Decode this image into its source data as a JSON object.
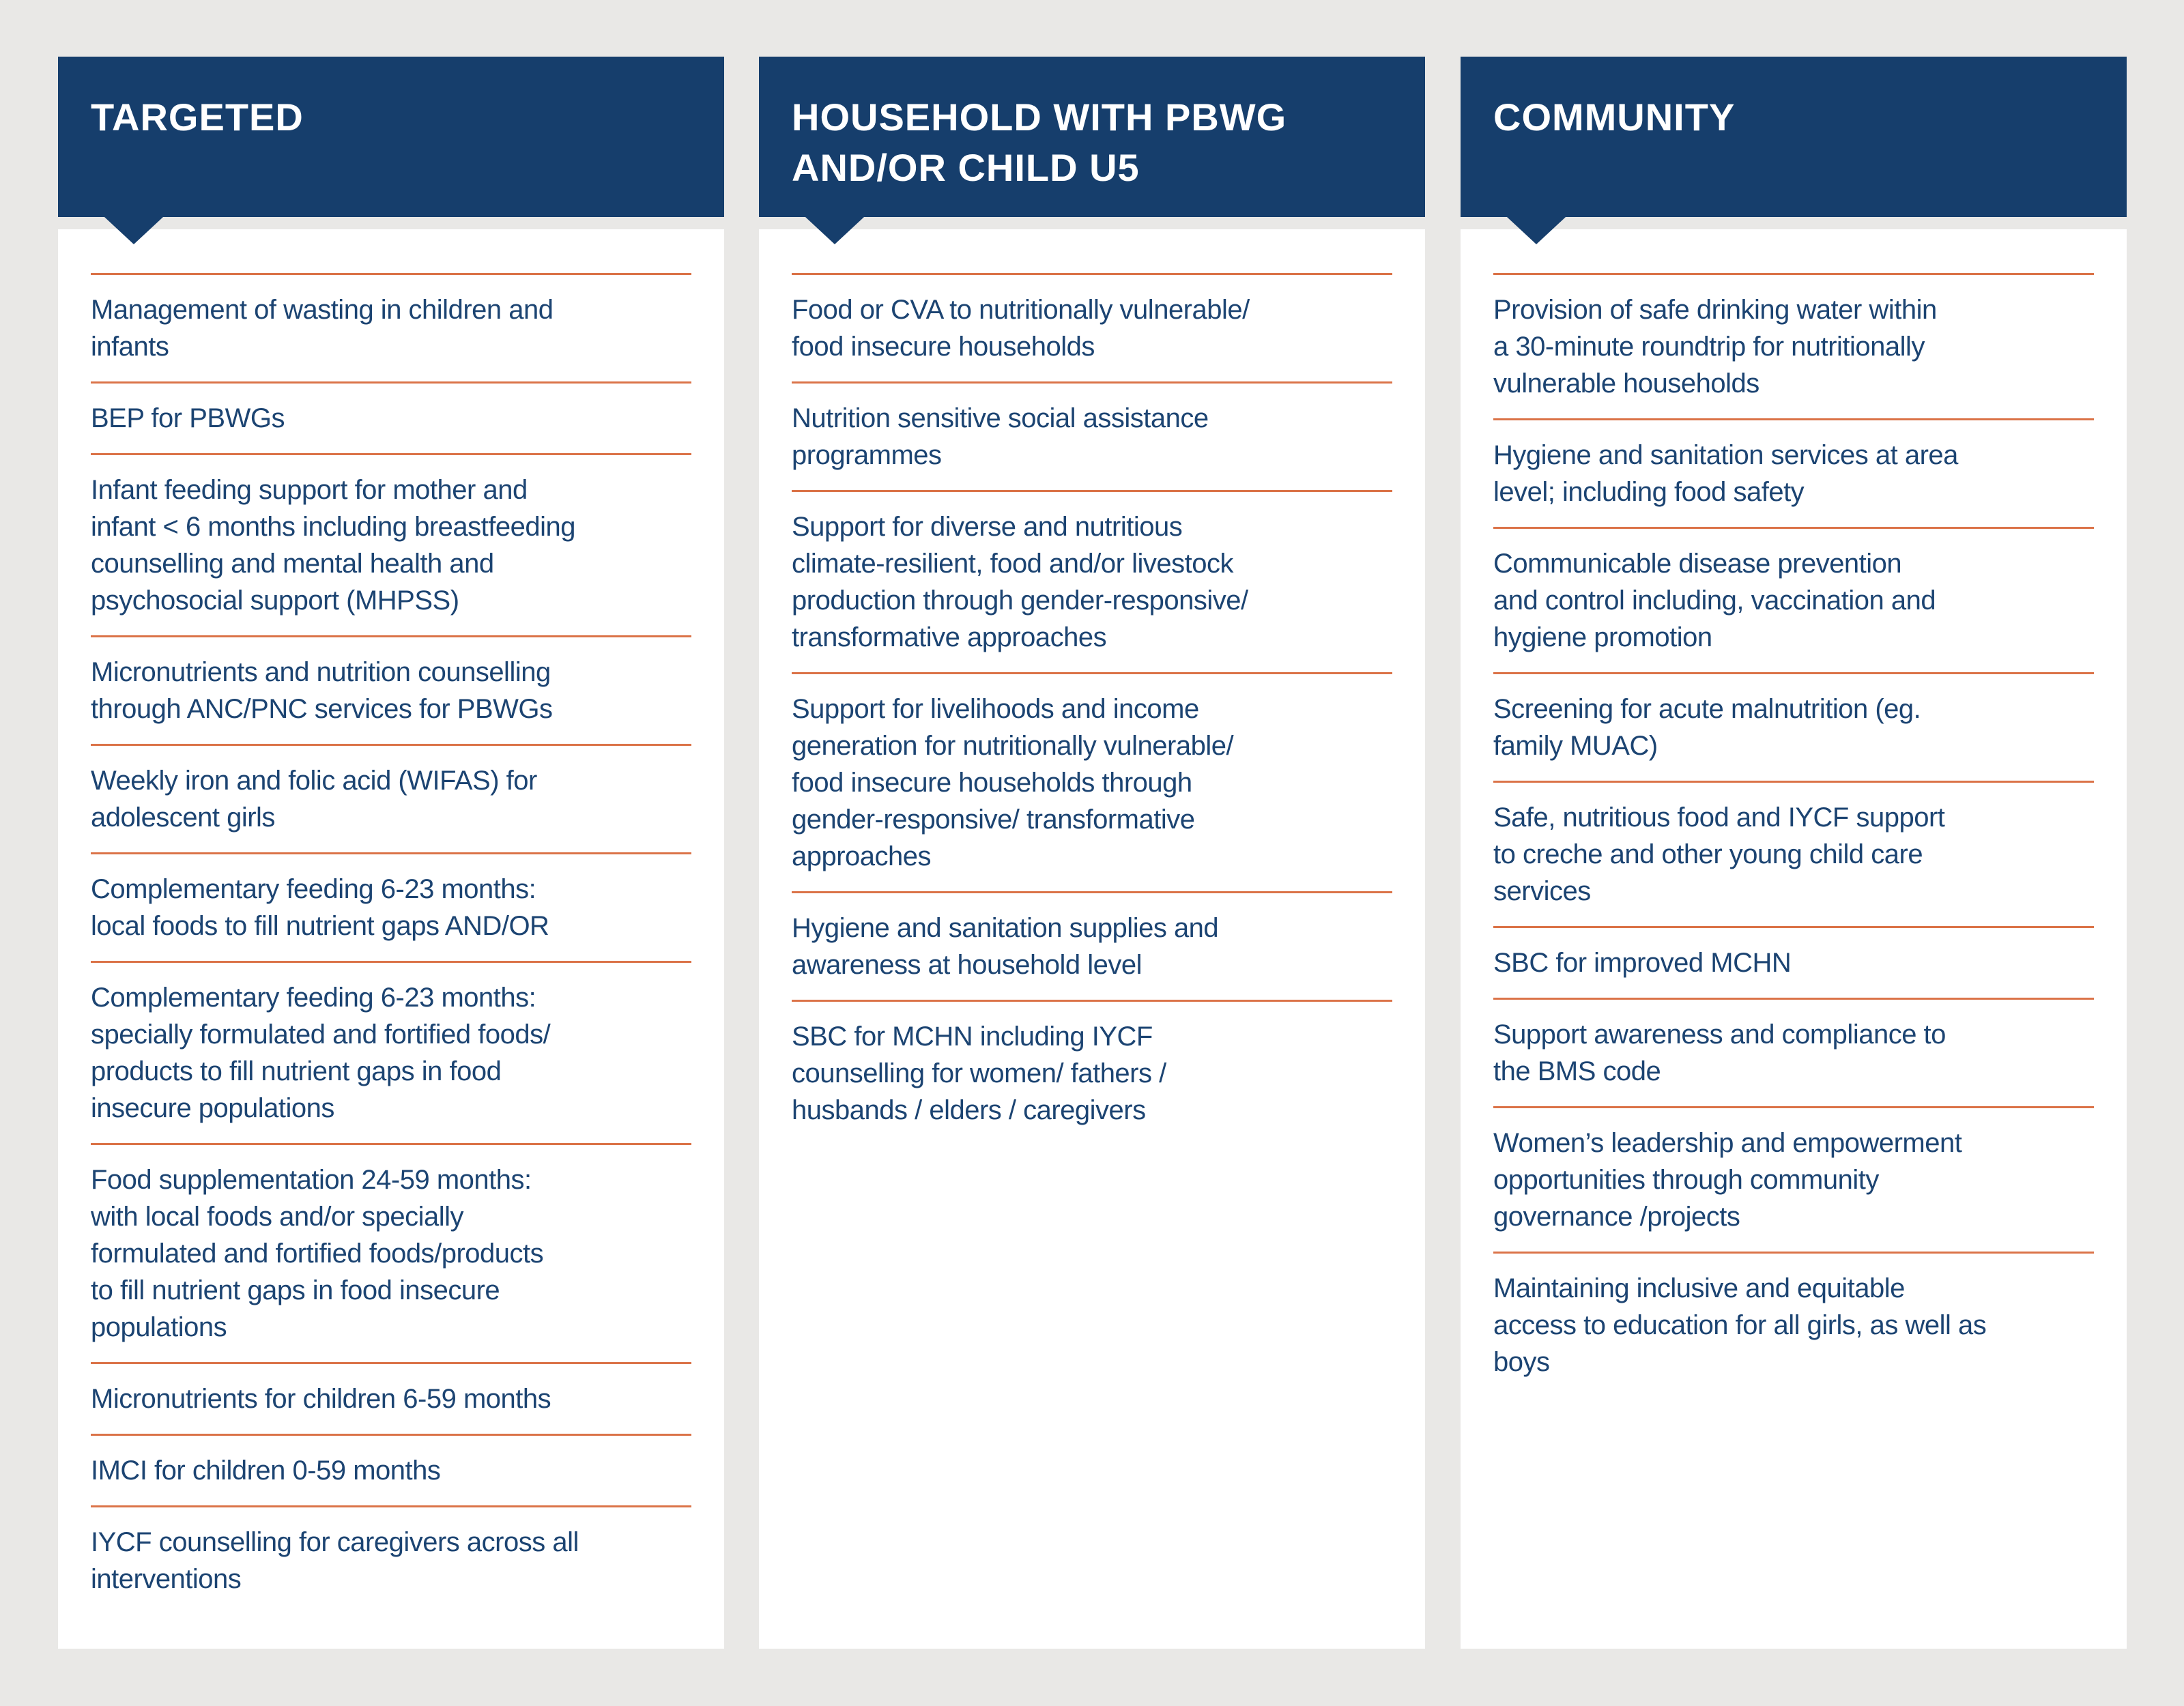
{
  "colors": {
    "page_bg": "#e9e8e6",
    "header_bg": "#163e6c",
    "header_text": "#ffffff",
    "card_bg": "#ffffff",
    "item_text": "#1c4472",
    "divider": "#db7348"
  },
  "columns": [
    {
      "title": "TARGETED",
      "items": [
        "Management of wasting in children and\ninfants",
        "BEP for PBWGs",
        "Infant feeding support for mother and\ninfant < 6 months including breastfeeding\ncounselling and mental health and\npsychosocial support (MHPSS)",
        "Micronutrients and nutrition counselling\nthrough ANC/PNC services for PBWGs",
        "Weekly iron and folic acid (WIFAS) for\nadolescent girls",
        "Complementary feeding 6-23 months:\nlocal foods to fill nutrient gaps AND/OR",
        "Complementary feeding 6-23 months:\nspecially formulated and fortified foods/\nproducts to fill nutrient gaps in food\ninsecure populations",
        "Food supplementation 24-59 months:\nwith local foods and/or specially\nformulated and fortified foods/products\nto fill nutrient gaps in food insecure\npopulations",
        "Micronutrients for children 6-59 months",
        "IMCI for children 0-59 months",
        "IYCF counselling for caregivers across all\ninterventions"
      ]
    },
    {
      "title": "HOUSEHOLD WITH PBWG\nAND/OR CHILD U5",
      "items": [
        "Food or CVA to nutritionally vulnerable/\nfood insecure households",
        "Nutrition sensitive social assistance\nprogrammes",
        "Support for diverse and nutritious\nclimate-resilient, food and/or livestock\nproduction through gender-responsive/\ntransformative approaches",
        "Support for livelihoods and income\ngeneration for nutritionally vulnerable/\nfood insecure households through\ngender-responsive/ transformative\napproaches",
        "Hygiene and sanitation supplies and\nawareness at household level",
        "SBC for MCHN including IYCF\ncounselling for women/ fathers /\nhusbands / elders / caregivers"
      ]
    },
    {
      "title": "COMMUNITY",
      "items": [
        "Provision of safe drinking water within\na 30-minute roundtrip for nutritionally\nvulnerable households",
        "Hygiene and sanitation services at area\nlevel; including food safety",
        "Communicable disease prevention\nand control including, vaccination and\nhygiene promotion",
        "Screening for acute malnutrition (eg.\nfamily MUAC)",
        "Safe, nutritious food and IYCF support\nto creche and other young child care\nservices",
        "SBC for improved MCHN",
        "Support awareness and compliance to\nthe BMS code",
        "Women’s leadership and empowerment\nopportunities through community\ngovernance /projects",
        "Maintaining inclusive and equitable\naccess to education for all girls, as well as\nboys"
      ]
    }
  ]
}
